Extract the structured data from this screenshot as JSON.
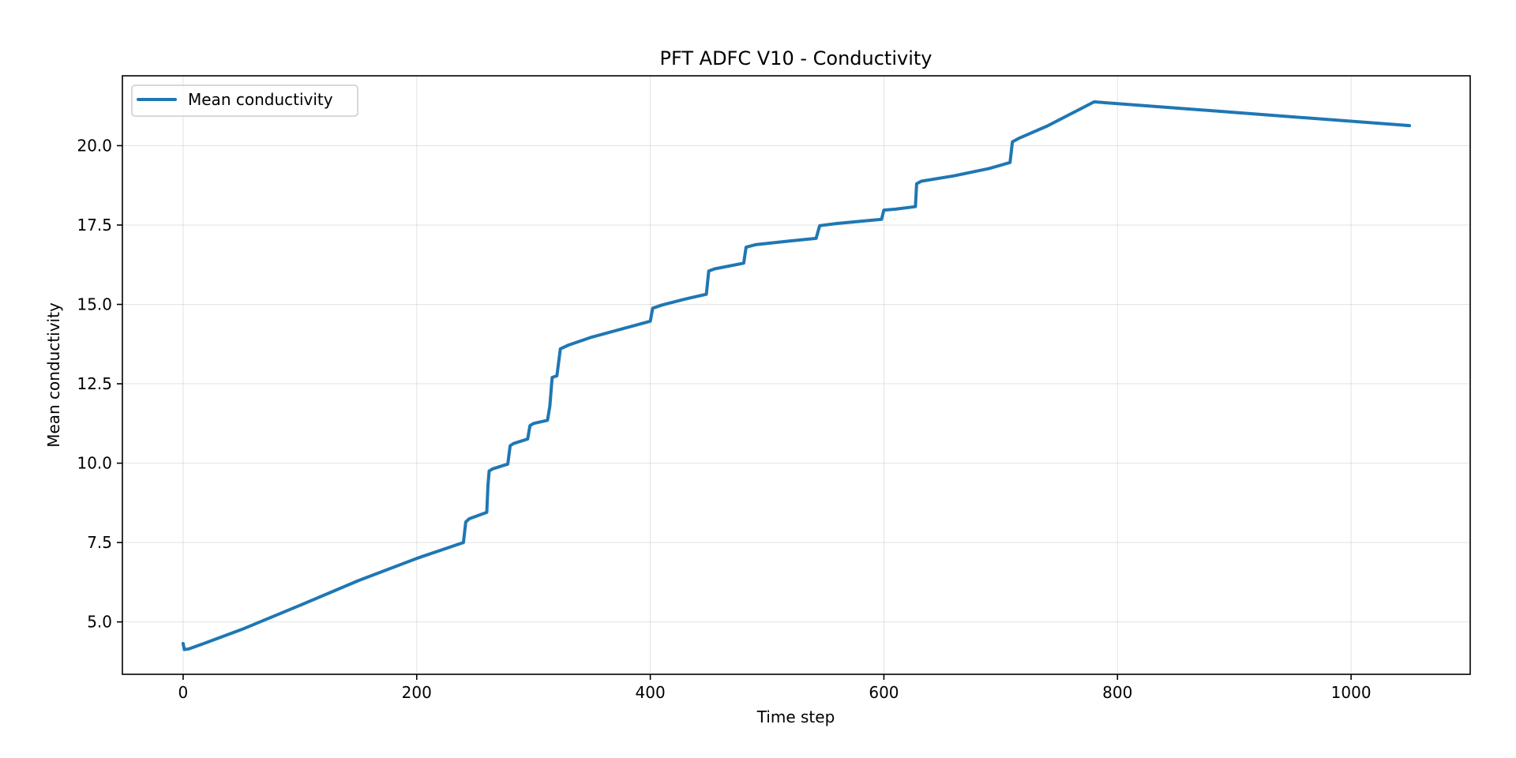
{
  "chart_data": {
    "type": "line",
    "title": "PFT ADFC V10 - Conductivity",
    "xlabel": "Time step",
    "ylabel": "Mean conductivity",
    "xlim": [
      -52,
      1102
    ],
    "ylim": [
      3.35,
      22.2
    ],
    "xticks": [
      0,
      200,
      400,
      600,
      800,
      1000
    ],
    "xtick_labels": [
      "0",
      "200",
      "400",
      "600",
      "800",
      "1000"
    ],
    "yticks": [
      5.0,
      7.5,
      10.0,
      12.5,
      15.0,
      17.5,
      20.0
    ],
    "ytick_labels": [
      "5.0",
      "7.5",
      "10.0",
      "12.5",
      "15.0",
      "17.5",
      "20.0"
    ],
    "grid": true,
    "legend_position": "top-left",
    "series": [
      {
        "name": "Mean conductivity",
        "color": "#1f77b4",
        "points": [
          [
            0,
            4.32
          ],
          [
            1,
            4.13
          ],
          [
            5,
            4.15
          ],
          [
            20,
            4.35
          ],
          [
            50,
            4.76
          ],
          [
            100,
            5.52
          ],
          [
            150,
            6.3
          ],
          [
            200,
            7.0
          ],
          [
            240,
            7.5
          ],
          [
            242,
            8.15
          ],
          [
            245,
            8.25
          ],
          [
            260,
            8.45
          ],
          [
            261,
            9.3
          ],
          [
            262,
            9.75
          ],
          [
            265,
            9.82
          ],
          [
            278,
            9.97
          ],
          [
            280,
            10.55
          ],
          [
            283,
            10.62
          ],
          [
            295,
            10.76
          ],
          [
            297,
            11.18
          ],
          [
            300,
            11.25
          ],
          [
            312,
            11.35
          ],
          [
            314,
            11.8
          ],
          [
            316,
            12.7
          ],
          [
            320,
            12.75
          ],
          [
            323,
            13.6
          ],
          [
            330,
            13.72
          ],
          [
            350,
            13.97
          ],
          [
            400,
            14.47
          ],
          [
            402,
            14.88
          ],
          [
            410,
            14.98
          ],
          [
            430,
            15.17
          ],
          [
            448,
            15.32
          ],
          [
            450,
            16.05
          ],
          [
            455,
            16.12
          ],
          [
            480,
            16.3
          ],
          [
            482,
            16.8
          ],
          [
            490,
            16.88
          ],
          [
            520,
            17.0
          ],
          [
            542,
            17.08
          ],
          [
            545,
            17.48
          ],
          [
            560,
            17.55
          ],
          [
            598,
            17.68
          ],
          [
            600,
            17.97
          ],
          [
            610,
            18.0
          ],
          [
            627,
            18.08
          ],
          [
            628,
            18.8
          ],
          [
            632,
            18.88
          ],
          [
            660,
            19.05
          ],
          [
            690,
            19.28
          ],
          [
            708,
            19.47
          ],
          [
            710,
            20.12
          ],
          [
            715,
            20.22
          ],
          [
            740,
            20.62
          ],
          [
            780,
            21.38
          ],
          [
            1050,
            20.63
          ]
        ]
      }
    ]
  }
}
